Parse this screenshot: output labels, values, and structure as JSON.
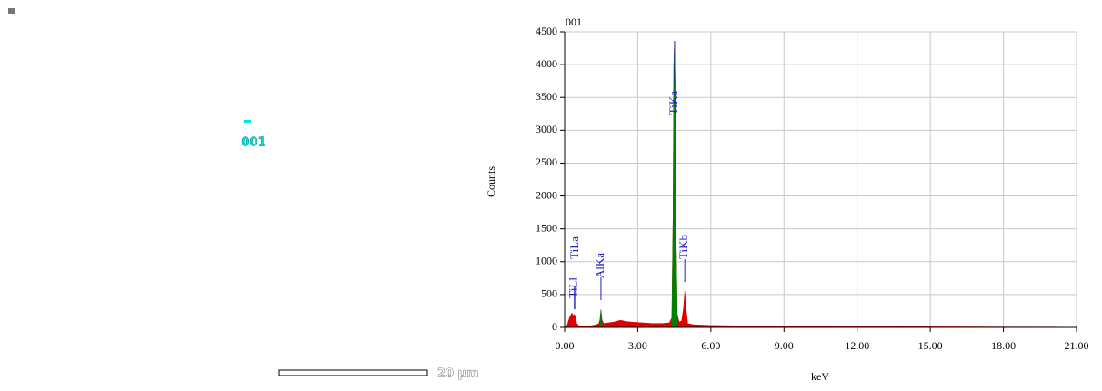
{
  "image": {
    "label": "001",
    "scale_bar": "20 µm"
  },
  "chart_data": {
    "type": "area",
    "title": "001",
    "x_label": "keV",
    "y_label": "Counts",
    "xlim": [
      0,
      21
    ],
    "ylim": [
      0,
      4500
    ],
    "xticks": [
      {
        "value": 0,
        "label": "0.00"
      },
      {
        "value": 3,
        "label": "3.00"
      },
      {
        "value": 6,
        "label": "6.00"
      },
      {
        "value": 9,
        "label": "9.00"
      },
      {
        "value": 12,
        "label": "12.00"
      },
      {
        "value": 15,
        "label": "15.00"
      },
      {
        "value": 18,
        "label": "18.00"
      },
      {
        "value": 21,
        "label": "21.00"
      }
    ],
    "yticks": [
      0,
      500,
      1000,
      1500,
      2000,
      2500,
      3000,
      3500,
      4000,
      4500
    ],
    "grid": true,
    "x": [
      0,
      0.1,
      0.2,
      0.3,
      0.35,
      0.4,
      0.45,
      0.5,
      0.6,
      0.8,
      1.0,
      1.3,
      1.4,
      1.45,
      1.49,
      1.53,
      1.6,
      1.8,
      2.0,
      2.3,
      2.5,
      2.8,
      3.2,
      3.6,
      4.0,
      4.3,
      4.4,
      4.45,
      4.48,
      4.51,
      4.54,
      4.57,
      4.62,
      4.7,
      4.8,
      4.88,
      4.93,
      4.98,
      5.05,
      5.3,
      6,
      7,
      8,
      9,
      10,
      12,
      14,
      16,
      18,
      20,
      20.5
    ],
    "series": [
      {
        "color": "#e00000",
        "values": [
          0,
          30,
          150,
          220,
          180,
          200,
          150,
          60,
          20,
          10,
          20,
          40,
          60,
          120,
          270,
          120,
          60,
          70,
          80,
          110,
          90,
          80,
          70,
          60,
          60,
          70,
          150,
          1700,
          4000,
          4350,
          3500,
          1500,
          200,
          80,
          100,
          300,
          550,
          300,
          60,
          40,
          30,
          25,
          20,
          18,
          15,
          12,
          10,
          8,
          6,
          5,
          3
        ]
      },
      {
        "color": "#008000",
        "values": [
          null,
          null,
          null,
          null,
          null,
          null,
          null,
          null,
          null,
          null,
          null,
          null,
          null,
          120,
          270,
          120,
          null,
          null,
          null,
          null,
          null,
          null,
          null,
          null,
          null,
          null,
          150,
          1700,
          4000,
          4350,
          3500,
          1500,
          200,
          null,
          null,
          null,
          null,
          null,
          null,
          null,
          null,
          null,
          null,
          null,
          null,
          null,
          null,
          null,
          null,
          null,
          null
        ]
      }
    ],
    "annotations": [
      {
        "label": "TiLl",
        "x": 0.4
      },
      {
        "label": "TiLa",
        "x": 0.45
      },
      {
        "label": "AlKa",
        "x": 1.49
      },
      {
        "label": "TiKa",
        "x": 4.51
      },
      {
        "label": "TiKb",
        "x": 4.93
      }
    ]
  }
}
